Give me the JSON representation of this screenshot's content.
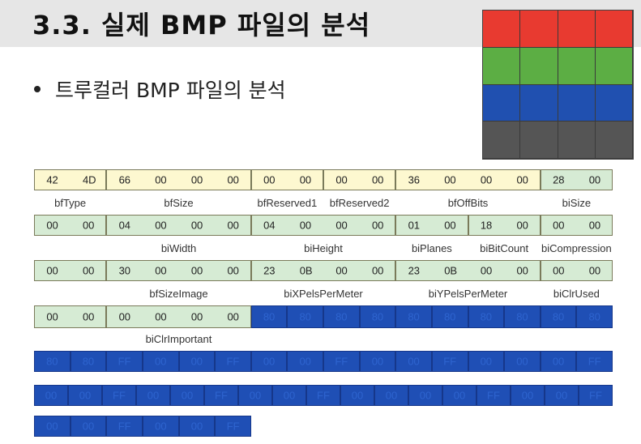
{
  "title": "3.3. 실제 BMP 파일의 분석",
  "bullet": "트루컬러 BMP 파일의 분석",
  "colors": {
    "yellow_cell": "#fdf8d0",
    "green_cell": "#d6ebd4",
    "blue_cell": "#1f4fb5",
    "swatch": [
      "#e83a30",
      "#5cae44",
      "#2050b0",
      "#555555"
    ]
  },
  "rows": [
    {
      "fields": [
        {
          "bytes": [
            "42",
            "4D"
          ],
          "color": "y",
          "label": "bfType"
        },
        {
          "bytes": [
            "66",
            "00",
            "00",
            "00"
          ],
          "color": "y",
          "label": "bfSize"
        },
        {
          "bytes": [
            "00",
            "00"
          ],
          "color": "y",
          "label": "bfReserved1"
        },
        {
          "bytes": [
            "00",
            "00"
          ],
          "color": "y",
          "label": "bfReserved2"
        },
        {
          "bytes": [
            "36",
            "00",
            "00",
            "00"
          ],
          "color": "y",
          "label": "bfOffBits"
        },
        {
          "bytes": [
            "28",
            "00"
          ],
          "color": "g",
          "label": "biSize"
        }
      ]
    },
    {
      "fields": [
        {
          "bytes": [
            "00",
            "00"
          ],
          "color": "g",
          "label": ""
        },
        {
          "bytes": [
            "04",
            "00",
            "00",
            "00"
          ],
          "color": "g",
          "label": "biWidth"
        },
        {
          "bytes": [
            "04",
            "00",
            "00",
            "00"
          ],
          "color": "g",
          "label": "biHeight"
        },
        {
          "bytes": [
            "01",
            "00"
          ],
          "color": "g",
          "label": "biPlanes"
        },
        {
          "bytes": [
            "18",
            "00"
          ],
          "color": "g",
          "label": "biBitCount"
        },
        {
          "bytes": [
            "00",
            "00"
          ],
          "color": "g",
          "label": "biCompression"
        }
      ]
    },
    {
      "fields": [
        {
          "bytes": [
            "00",
            "00"
          ],
          "color": "g",
          "label": ""
        },
        {
          "bytes": [
            "30",
            "00",
            "00",
            "00"
          ],
          "color": "g",
          "label": "bfSizeImage"
        },
        {
          "bytes": [
            "23",
            "0B",
            "00",
            "00"
          ],
          "color": "g",
          "label": "biXPelsPerMeter"
        },
        {
          "bytes": [
            "23",
            "0B",
            "00",
            "00"
          ],
          "color": "g",
          "label": "biYPelsPerMeter"
        },
        {
          "bytes": [
            "00",
            "00"
          ],
          "color": "g",
          "label": "biClrUsed"
        }
      ]
    },
    {
      "fields": [
        {
          "bytes": [
            "00",
            "00"
          ],
          "color": "g",
          "label": ""
        },
        {
          "bytes": [
            "00",
            "00",
            "00",
            "00"
          ],
          "color": "g",
          "label": "biClrImportant"
        },
        {
          "bytes": [
            "80"
          ],
          "color": "b",
          "label": ""
        },
        {
          "bytes": [
            "80"
          ],
          "color": "b",
          "label": ""
        },
        {
          "bytes": [
            "80"
          ],
          "color": "b",
          "label": ""
        },
        {
          "bytes": [
            "80"
          ],
          "color": "b",
          "label": ""
        },
        {
          "bytes": [
            "80"
          ],
          "color": "b",
          "label": ""
        },
        {
          "bytes": [
            "80"
          ],
          "color": "b",
          "label": ""
        },
        {
          "bytes": [
            "80"
          ],
          "color": "b",
          "label": ""
        },
        {
          "bytes": [
            "80"
          ],
          "color": "b",
          "label": ""
        },
        {
          "bytes": [
            "80"
          ],
          "color": "b",
          "label": ""
        },
        {
          "bytes": [
            "80"
          ],
          "color": "b",
          "label": ""
        }
      ]
    },
    {
      "fields": [
        {
          "bytes": [
            "80"
          ],
          "color": "b",
          "label": ""
        },
        {
          "bytes": [
            "80"
          ],
          "color": "b",
          "label": ""
        },
        {
          "bytes": [
            "FF"
          ],
          "color": "b",
          "label": ""
        },
        {
          "bytes": [
            "00"
          ],
          "color": "b",
          "label": ""
        },
        {
          "bytes": [
            "00"
          ],
          "color": "b",
          "label": ""
        },
        {
          "bytes": [
            "FF"
          ],
          "color": "b",
          "label": ""
        },
        {
          "bytes": [
            "00"
          ],
          "color": "b",
          "label": ""
        },
        {
          "bytes": [
            "00"
          ],
          "color": "b",
          "label": ""
        },
        {
          "bytes": [
            "FF"
          ],
          "color": "b",
          "label": ""
        },
        {
          "bytes": [
            "00"
          ],
          "color": "b",
          "label": ""
        },
        {
          "bytes": [
            "00"
          ],
          "color": "b",
          "label": ""
        },
        {
          "bytes": [
            "FF"
          ],
          "color": "b",
          "label": ""
        },
        {
          "bytes": [
            "00"
          ],
          "color": "b",
          "label": ""
        },
        {
          "bytes": [
            "00"
          ],
          "color": "b",
          "label": ""
        },
        {
          "bytes": [
            "00"
          ],
          "color": "b",
          "label": ""
        },
        {
          "bytes": [
            "FF"
          ],
          "color": "b",
          "label": ""
        }
      ]
    },
    {
      "fields": [
        {
          "bytes": [
            "00"
          ],
          "color": "b",
          "label": ""
        },
        {
          "bytes": [
            "00"
          ],
          "color": "b",
          "label": ""
        },
        {
          "bytes": [
            "FF"
          ],
          "color": "b",
          "label": ""
        },
        {
          "bytes": [
            "00"
          ],
          "color": "b",
          "label": ""
        },
        {
          "bytes": [
            "00"
          ],
          "color": "b",
          "label": ""
        },
        {
          "bytes": [
            "FF"
          ],
          "color": "b",
          "label": ""
        },
        {
          "bytes": [
            "00"
          ],
          "color": "b",
          "label": ""
        },
        {
          "bytes": [
            "00"
          ],
          "color": "b",
          "label": ""
        },
        {
          "bytes": [
            "FF"
          ],
          "color": "b",
          "label": ""
        },
        {
          "bytes": [
            "00"
          ],
          "color": "b",
          "label": ""
        },
        {
          "bytes": [
            "00"
          ],
          "color": "b",
          "label": ""
        },
        {
          "bytes": [
            "00"
          ],
          "color": "b",
          "label": ""
        },
        {
          "bytes": [
            "00"
          ],
          "color": "b",
          "label": ""
        },
        {
          "bytes": [
            "FF"
          ],
          "color": "b",
          "label": ""
        },
        {
          "bytes": [
            "00"
          ],
          "color": "b",
          "label": ""
        },
        {
          "bytes": [
            "00"
          ],
          "color": "b",
          "label": ""
        },
        {
          "bytes": [
            "FF"
          ],
          "color": "b",
          "label": ""
        }
      ]
    },
    {
      "fields": [
        {
          "bytes": [
            "00"
          ],
          "color": "b",
          "label": ""
        },
        {
          "bytes": [
            "00"
          ],
          "color": "b",
          "label": ""
        },
        {
          "bytes": [
            "FF"
          ],
          "color": "b",
          "label": ""
        },
        {
          "bytes": [
            "00"
          ],
          "color": "b",
          "label": ""
        },
        {
          "bytes": [
            "00"
          ],
          "color": "b",
          "label": ""
        },
        {
          "bytes": [
            "FF"
          ],
          "color": "b",
          "label": ""
        }
      ]
    }
  ]
}
